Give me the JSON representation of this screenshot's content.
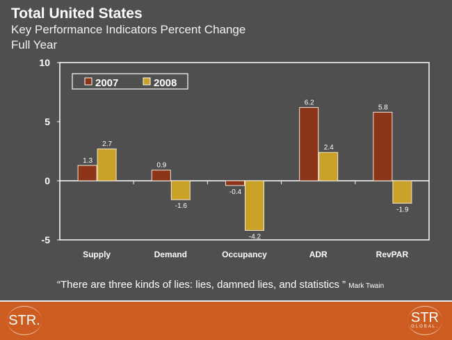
{
  "header": {
    "title": "Total United States",
    "subtitle": "Key Performance Indicators Percent Change",
    "period": "Full Year"
  },
  "chart_data": {
    "type": "bar",
    "categories": [
      "Supply",
      "Demand",
      "Occupancy",
      "ADR",
      "RevPAR"
    ],
    "series": [
      {
        "name": "2007",
        "values": [
          1.3,
          0.9,
          -0.4,
          6.2,
          5.8
        ],
        "color": "#8b3417"
      },
      {
        "name": "2008",
        "values": [
          2.7,
          -1.6,
          -4.2,
          2.4,
          -1.9
        ],
        "color": "#c9a227"
      }
    ],
    "ylim": [
      -5,
      10
    ],
    "yticks": [
      -5,
      0,
      5,
      10
    ],
    "legend": "top-left",
    "grid": false
  },
  "quote": {
    "text": "“There are three kinds of lies: lies, damned lies, and statistics ”",
    "author": "Mark Twain"
  },
  "footer": {
    "logo_left": "STR.",
    "logo_right": "STR",
    "logo_right_sub": "GLOBAL."
  }
}
